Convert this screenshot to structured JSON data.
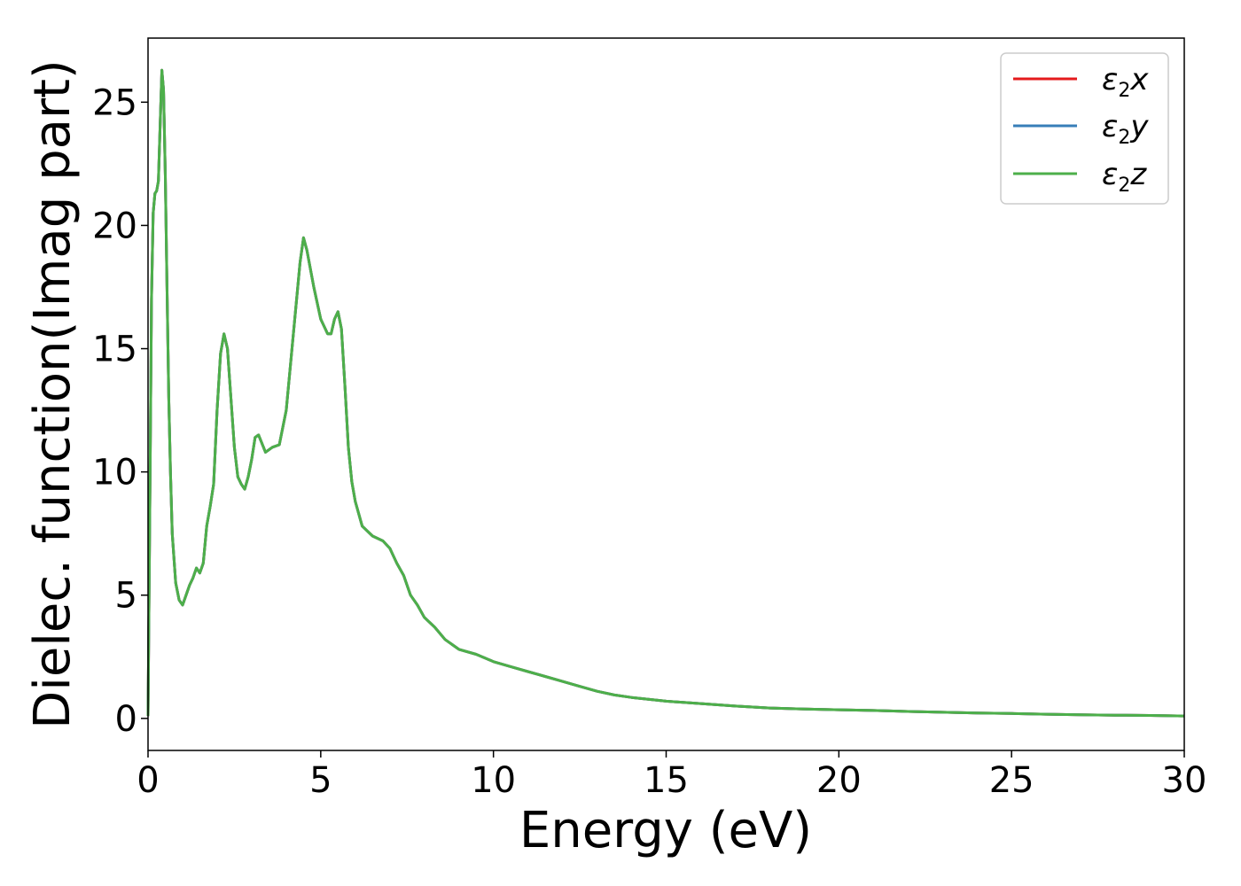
{
  "chart_data": {
    "type": "line",
    "xlabel": "Energy (eV)",
    "ylabel": "Dielec. function(Imag part)",
    "xlim": [
      0,
      30
    ],
    "ylim": [
      -1.3,
      27.6
    ],
    "xticks": [
      0,
      5,
      10,
      15,
      20,
      25,
      30
    ],
    "yticks": [
      0,
      5,
      10,
      15,
      20,
      25
    ],
    "grid": false,
    "legend_position": "top-right",
    "x": [
      0,
      0.05,
      0.1,
      0.15,
      0.2,
      0.25,
      0.3,
      0.35,
      0.4,
      0.45,
      0.5,
      0.55,
      0.6,
      0.65,
      0.7,
      0.8,
      0.9,
      1.0,
      1.1,
      1.2,
      1.3,
      1.4,
      1.5,
      1.6,
      1.7,
      1.8,
      1.9,
      2.0,
      2.1,
      2.2,
      2.3,
      2.4,
      2.5,
      2.6,
      2.7,
      2.8,
      2.9,
      3.0,
      3.1,
      3.2,
      3.4,
      3.6,
      3.8,
      4.0,
      4.2,
      4.4,
      4.5,
      4.6,
      4.8,
      5.0,
      5.2,
      5.3,
      5.4,
      5.5,
      5.6,
      5.7,
      5.8,
      5.9,
      6.0,
      6.2,
      6.5,
      6.8,
      7.0,
      7.2,
      7.4,
      7.6,
      7.8,
      8.0,
      8.3,
      8.6,
      9.0,
      9.5,
      10.0,
      10.5,
      11.0,
      11.5,
      12.0,
      12.5,
      13.0,
      13.5,
      14.0,
      15.0,
      16.0,
      17.0,
      18.0,
      19.0,
      20.0,
      21.0,
      22.0,
      23.0,
      24.0,
      25.0,
      26.0,
      27.0,
      28.0,
      29.0,
      30.0
    ],
    "series": [
      {
        "name": "x",
        "color": "#e41a1c",
        "values": [
          0.1,
          8.0,
          17.0,
          20.5,
          21.3,
          21.4,
          21.8,
          24.0,
          26.3,
          25.5,
          22.0,
          17.5,
          13.0,
          10.0,
          7.5,
          5.5,
          4.8,
          4.6,
          5.0,
          5.4,
          5.7,
          6.1,
          5.9,
          6.3,
          7.8,
          8.6,
          9.5,
          12.5,
          14.8,
          15.6,
          15.0,
          13.0,
          11.0,
          9.8,
          9.5,
          9.3,
          9.8,
          10.5,
          11.4,
          11.5,
          10.8,
          11.0,
          11.1,
          12.5,
          15.5,
          18.5,
          19.5,
          19.0,
          17.5,
          16.2,
          15.6,
          15.6,
          16.2,
          16.5,
          15.8,
          13.5,
          11.0,
          9.6,
          8.8,
          7.8,
          7.4,
          7.2,
          6.9,
          6.3,
          5.8,
          5.0,
          4.6,
          4.1,
          3.7,
          3.2,
          2.8,
          2.6,
          2.3,
          2.1,
          1.9,
          1.7,
          1.5,
          1.3,
          1.1,
          0.95,
          0.85,
          0.7,
          0.6,
          0.5,
          0.42,
          0.38,
          0.35,
          0.32,
          0.28,
          0.25,
          0.22,
          0.2,
          0.17,
          0.15,
          0.13,
          0.12,
          0.1
        ]
      },
      {
        "name": "y",
        "color": "#377eb8",
        "values": [
          0.1,
          8.0,
          17.0,
          20.5,
          21.3,
          21.4,
          21.8,
          24.0,
          26.3,
          25.5,
          22.0,
          17.5,
          13.0,
          10.0,
          7.5,
          5.5,
          4.8,
          4.6,
          5.0,
          5.4,
          5.7,
          6.1,
          5.9,
          6.3,
          7.8,
          8.6,
          9.5,
          12.5,
          14.8,
          15.6,
          15.0,
          13.0,
          11.0,
          9.8,
          9.5,
          9.3,
          9.8,
          10.5,
          11.4,
          11.5,
          10.8,
          11.0,
          11.1,
          12.5,
          15.5,
          18.5,
          19.5,
          19.0,
          17.5,
          16.2,
          15.6,
          15.6,
          16.2,
          16.5,
          15.8,
          13.5,
          11.0,
          9.6,
          8.8,
          7.8,
          7.4,
          7.2,
          6.9,
          6.3,
          5.8,
          5.0,
          4.6,
          4.1,
          3.7,
          3.2,
          2.8,
          2.6,
          2.3,
          2.1,
          1.9,
          1.7,
          1.5,
          1.3,
          1.1,
          0.95,
          0.85,
          0.7,
          0.6,
          0.5,
          0.42,
          0.38,
          0.35,
          0.32,
          0.28,
          0.25,
          0.22,
          0.2,
          0.17,
          0.15,
          0.13,
          0.12,
          0.1
        ]
      },
      {
        "name": "z",
        "color": "#4daf4a",
        "values": [
          0.1,
          8.0,
          17.0,
          20.5,
          21.3,
          21.4,
          21.8,
          24.0,
          26.3,
          25.5,
          22.0,
          17.5,
          13.0,
          10.0,
          7.5,
          5.5,
          4.8,
          4.6,
          5.0,
          5.4,
          5.7,
          6.1,
          5.9,
          6.3,
          7.8,
          8.6,
          9.5,
          12.5,
          14.8,
          15.6,
          15.0,
          13.0,
          11.0,
          9.8,
          9.5,
          9.3,
          9.8,
          10.5,
          11.4,
          11.5,
          10.8,
          11.0,
          11.1,
          12.5,
          15.5,
          18.5,
          19.5,
          19.0,
          17.5,
          16.2,
          15.6,
          15.6,
          16.2,
          16.5,
          15.8,
          13.5,
          11.0,
          9.6,
          8.8,
          7.8,
          7.4,
          7.2,
          6.9,
          6.3,
          5.8,
          5.0,
          4.6,
          4.1,
          3.7,
          3.2,
          2.8,
          2.6,
          2.3,
          2.1,
          1.9,
          1.7,
          1.5,
          1.3,
          1.1,
          0.95,
          0.85,
          0.7,
          0.6,
          0.5,
          0.42,
          0.38,
          0.35,
          0.32,
          0.28,
          0.25,
          0.22,
          0.2,
          0.17,
          0.15,
          0.13,
          0.12,
          0.1
        ]
      }
    ],
    "legend": [
      {
        "symbol": "ε",
        "subscript": "2",
        "component": "x",
        "color": "#e41a1c"
      },
      {
        "symbol": "ε",
        "subscript": "2",
        "component": "y",
        "color": "#377eb8"
      },
      {
        "symbol": "ε",
        "subscript": "2",
        "component": "z",
        "color": "#4daf4a"
      }
    ]
  }
}
